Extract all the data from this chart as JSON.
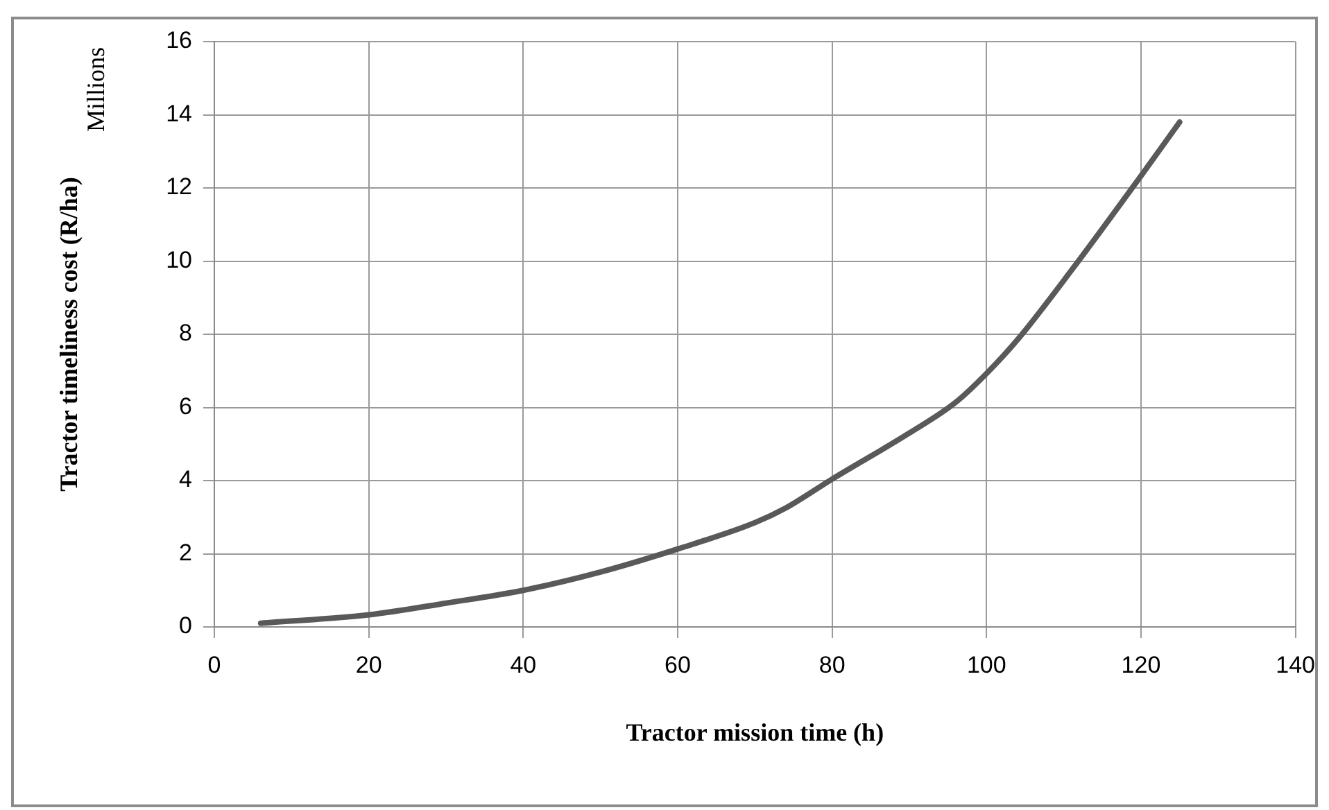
{
  "chart_data": {
    "type": "line",
    "xlabel": "Tractor mission time (h)",
    "ylabel": "Tractor timeliness cost (R/ha)",
    "annotations": [
      "Millions"
    ],
    "series": [
      {
        "color": "#595959",
        "x": [
          6,
          20,
          30,
          40,
          50,
          60,
          70,
          74,
          80,
          90,
          96,
          100,
          104,
          111,
          120,
          125
        ],
        "values": [
          0.1,
          0.33,
          0.65,
          1.0,
          1.5,
          2.13,
          2.85,
          3.25,
          4.04,
          5.3,
          6.14,
          6.93,
          7.85,
          9.75,
          12.33,
          13.8
        ]
      }
    ],
    "xlim": [
      0,
      140
    ],
    "xticks": [
      0,
      20,
      40,
      60,
      80,
      100,
      120,
      140
    ],
    "ylim": [
      0,
      16
    ],
    "yticks": [
      0,
      2,
      4,
      6,
      8,
      10,
      12,
      14,
      16
    ],
    "grid": true,
    "legend": false,
    "marker": "none",
    "line_style": "solid"
  }
}
